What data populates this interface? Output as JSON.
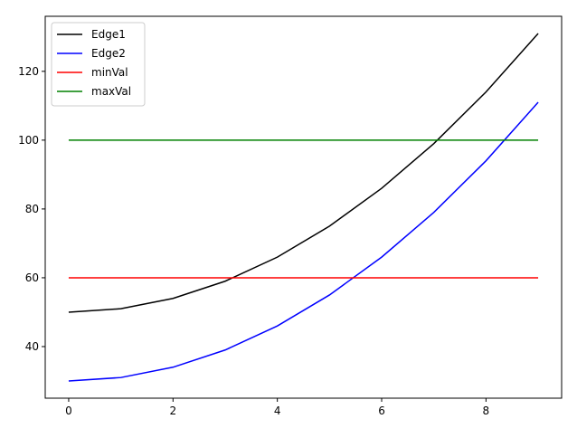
{
  "chart_data": {
    "type": "line",
    "title": "",
    "xlabel": "",
    "ylabel": "",
    "x": [
      0,
      1,
      2,
      3,
      4,
      5,
      6,
      7,
      8,
      9
    ],
    "series": [
      {
        "name": "Edge1",
        "color": "#000000",
        "values": [
          50,
          51,
          54,
          59,
          66,
          75,
          86,
          99,
          114,
          131
        ]
      },
      {
        "name": "Edge2",
        "color": "#0000ff",
        "values": [
          30,
          31,
          34,
          39,
          46,
          55,
          66,
          79,
          94,
          111
        ]
      },
      {
        "name": "minVal",
        "color": "#ff0000",
        "values": [
          60,
          60,
          60,
          60,
          60,
          60,
          60,
          60,
          60,
          60
        ]
      },
      {
        "name": "maxVal",
        "color": "#008000",
        "values": [
          100,
          100,
          100,
          100,
          100,
          100,
          100,
          100,
          100,
          100
        ]
      }
    ],
    "xlim": [
      -0.45,
      9.45
    ],
    "ylim": [
      25,
      136
    ],
    "xticks": [
      0,
      2,
      4,
      6,
      8
    ],
    "yticks": [
      40,
      60,
      80,
      100,
      120
    ],
    "grid": false,
    "legend_position": "upper left"
  }
}
